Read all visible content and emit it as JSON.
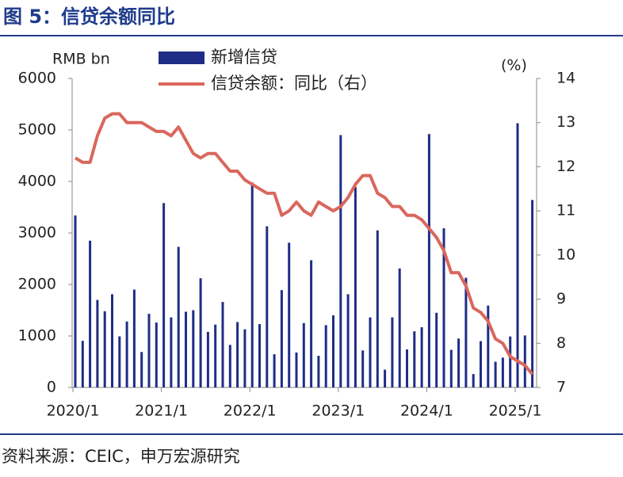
{
  "title": "图 5：信贷余额同比",
  "source": "资料来源：CEIC，申万宏源研究",
  "chart_data": {
    "type": "bar_line",
    "y_label": "RMB bn",
    "y2_label": "(%)",
    "categories": [
      "2020/1",
      null,
      null,
      null,
      null,
      null,
      null,
      null,
      null,
      null,
      null,
      null,
      "2021/1",
      null,
      null,
      null,
      null,
      null,
      null,
      null,
      null,
      null,
      null,
      null,
      "2022/1",
      null,
      null,
      null,
      null,
      null,
      null,
      null,
      null,
      null,
      null,
      null,
      "2023/1",
      null,
      null,
      null,
      null,
      null,
      null,
      null,
      null,
      null,
      null,
      null,
      "2024/1",
      null,
      null,
      null,
      null,
      null,
      null,
      null,
      null,
      null,
      null,
      null,
      "2025/1",
      null,
      null
    ],
    "series": [
      {
        "name": "新增信贷",
        "color": "#1f2d86",
        "kind": "bar",
        "axis": "y",
        "values": [
          3340,
          905,
          2850,
          1700,
          1480,
          1810,
          992,
          1280,
          1900,
          689,
          1430,
          1260,
          3580,
          1360,
          2730,
          1470,
          1500,
          2120,
          1080,
          1220,
          1660,
          826,
          1270,
          1130,
          3980,
          1230,
          3130,
          645,
          1890,
          2810,
          679,
          1250,
          2470,
          615,
          1210,
          1400,
          4900,
          1810,
          3890,
          719,
          1360,
          3050,
          345,
          1360,
          2310,
          738,
          1090,
          1170,
          4920,
          1450,
          3090,
          730,
          950,
          2130,
          260,
          900,
          1590,
          500,
          580,
          990,
          5130,
          1010,
          3640
        ]
      },
      {
        "name": "信贷余额：同比（右）",
        "color": "#d9675c",
        "kind": "line",
        "axis": "y2",
        "values": [
          12.2,
          12.1,
          12.1,
          12.7,
          13.1,
          13.2,
          13.2,
          13.0,
          13.0,
          13.0,
          12.9,
          12.8,
          12.8,
          12.7,
          12.9,
          12.6,
          12.3,
          12.2,
          12.3,
          12.3,
          12.1,
          11.9,
          11.9,
          11.7,
          11.6,
          11.5,
          11.4,
          11.4,
          10.9,
          11.0,
          11.2,
          11.0,
          10.9,
          11.2,
          11.1,
          11.0,
          11.1,
          11.3,
          11.6,
          11.8,
          11.8,
          11.4,
          11.3,
          11.1,
          11.1,
          10.9,
          10.9,
          10.8,
          10.6,
          10.4,
          10.1,
          9.6,
          9.6,
          9.3,
          8.8,
          8.7,
          8.5,
          8.1,
          8.0,
          7.7,
          7.6,
          7.5,
          7.3
        ]
      }
    ],
    "ylim": [
      0,
      6000
    ],
    "yticks": [
      0,
      1000,
      2000,
      3000,
      4000,
      5000,
      6000
    ],
    "y2lim": [
      7,
      14
    ],
    "y2ticks": [
      7,
      8,
      9,
      10,
      11,
      12,
      13,
      14
    ]
  }
}
